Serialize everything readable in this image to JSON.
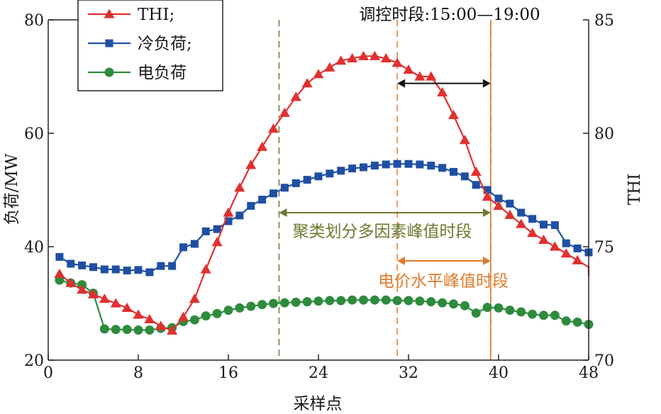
{
  "chart_data": {
    "type": "line",
    "xlabel": "采样点",
    "ylabel_left": "负荷/MW",
    "ylabel_right": "THI",
    "xlim": [
      0,
      48
    ],
    "ylim_left": [
      20,
      80
    ],
    "ylim_right": [
      70,
      85
    ],
    "x_ticks": [
      0,
      8,
      16,
      24,
      32,
      40,
      48
    ],
    "y_ticks_left": [
      20,
      40,
      60,
      80
    ],
    "y_ticks_right": [
      70,
      75,
      80,
      85
    ],
    "x_tick_labels": [
      "0",
      "8",
      "16",
      "24",
      "32",
      "40",
      "48"
    ],
    "y_tick_labels_left": [
      "20",
      "40",
      "60",
      "80"
    ],
    "y_tick_labels_right": [
      "70",
      "75",
      "80",
      "85"
    ],
    "grid": false,
    "legend_position": "top-left",
    "x": [
      1,
      2,
      3,
      4,
      5,
      6,
      7,
      8,
      9,
      10,
      11,
      12,
      13,
      14,
      15,
      16,
      17,
      18,
      19,
      20,
      21,
      22,
      23,
      24,
      25,
      26,
      27,
      28,
      29,
      30,
      31,
      32,
      33,
      34,
      35,
      36,
      37,
      38,
      39,
      40,
      41,
      42,
      43,
      44,
      45,
      46,
      47,
      48
    ],
    "series": [
      {
        "name": "THI;",
        "axis": "right",
        "color": "#e03030",
        "marker": "triangle",
        "values": [
          73.8,
          73.4,
          73.1,
          72.9,
          72.7,
          72.5,
          72.3,
          72.0,
          71.8,
          71.5,
          71.3,
          71.9,
          72.7,
          74.0,
          75.2,
          76.5,
          77.6,
          78.6,
          79.4,
          80.2,
          80.9,
          81.6,
          82.2,
          82.6,
          82.9,
          83.2,
          83.3,
          83.4,
          83.4,
          83.3,
          83.1,
          82.8,
          82.5,
          82.5,
          81.8,
          80.8,
          79.7,
          78.3,
          77.2,
          76.8,
          76.4,
          76.0,
          75.6,
          75.3,
          75.0,
          74.7,
          74.4,
          74.1
        ]
      },
      {
        "name": "冷负荷;",
        "axis": "left",
        "color": "#1f4fa3",
        "marker": "square",
        "values": [
          38.2,
          37.0,
          36.7,
          36.4,
          36.0,
          36.0,
          35.8,
          35.9,
          35.5,
          36.6,
          36.6,
          39.9,
          40.5,
          42.7,
          43.1,
          44.5,
          45.5,
          47.2,
          48.3,
          49.4,
          50.4,
          51.2,
          51.8,
          52.4,
          52.9,
          53.4,
          53.8,
          54.0,
          54.3,
          54.5,
          54.6,
          54.6,
          54.5,
          54.3,
          53.9,
          53.2,
          52.4,
          50.9,
          50.0,
          48.5,
          47.6,
          46.0,
          44.9,
          43.9,
          43.8,
          40.6,
          39.7,
          39.0
        ]
      },
      {
        "name": "电负荷",
        "axis": "left",
        "color": "#2e8b3d",
        "marker": "circle",
        "values": [
          34.1,
          33.6,
          33.3,
          31.8,
          25.5,
          25.4,
          25.4,
          25.3,
          25.3,
          25.6,
          25.7,
          26.8,
          27.1,
          27.8,
          28.2,
          28.8,
          29.2,
          29.5,
          29.8,
          30.0,
          30.1,
          30.2,
          30.3,
          30.4,
          30.5,
          30.5,
          30.6,
          30.6,
          30.6,
          30.6,
          30.5,
          30.5,
          30.4,
          30.3,
          30.1,
          29.9,
          29.6,
          28.3,
          29.3,
          29.2,
          28.8,
          28.5,
          28.1,
          27.9,
          27.9,
          26.9,
          26.7,
          26.3
        ]
      }
    ],
    "vertical_lines": [
      {
        "x": 20.5,
        "color": "#6b7a2e",
        "style": "dashed"
      },
      {
        "x": 31.0,
        "color": "#e07a2a",
        "style": "dashed"
      },
      {
        "x": 39.3,
        "color": "#6b7a2e",
        "style": "dashed"
      },
      {
        "x": 39.3,
        "color": "#e07a2a",
        "style": "solid"
      }
    ],
    "annotations": [
      {
        "text": "调控时段:15:00—19:00",
        "color": "#111111",
        "arrow_from_x": 31.0,
        "arrow_to_x": 39.3,
        "arrow_y": 82.2
      },
      {
        "text": "聚类划分多因素峰值时段",
        "color": "#6b7a2e",
        "arrow_from_x": 20.5,
        "arrow_to_x": 39.3,
        "arrow_y": 46.0
      },
      {
        "text": "电价水平峰值时段",
        "color": "#e07a2a",
        "arrow_from_x": 31.0,
        "arrow_to_x": 39.3,
        "arrow_y": 37.5
      }
    ]
  }
}
